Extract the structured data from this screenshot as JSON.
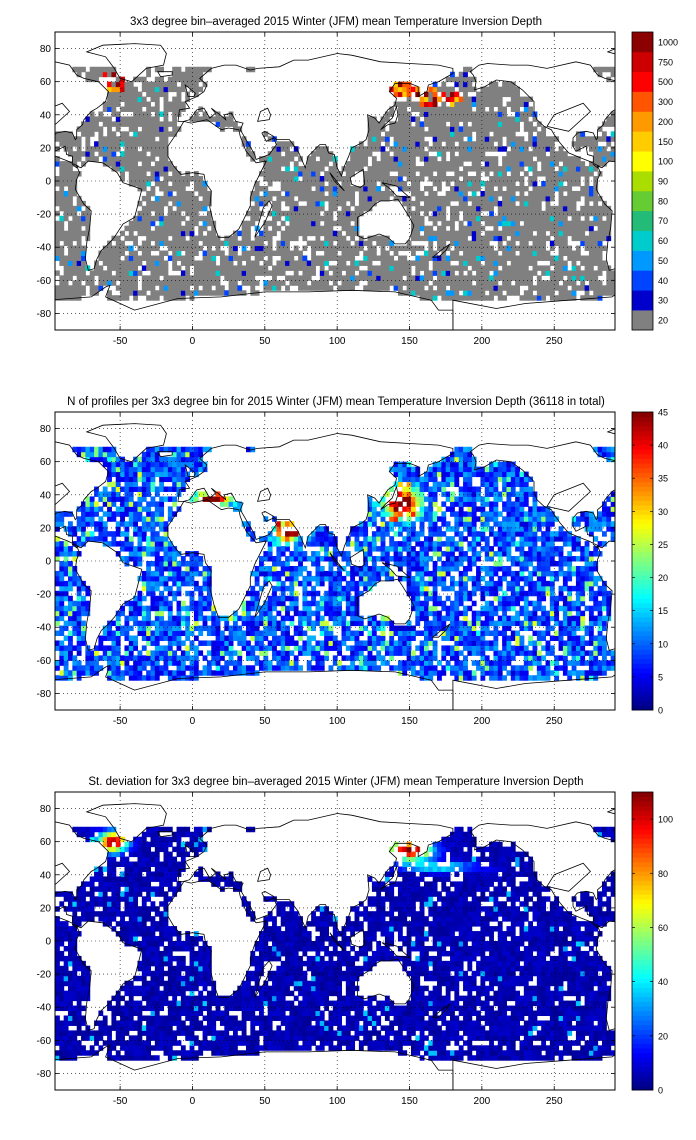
{
  "chart_data": [
    {
      "type": "heatmap",
      "title": "3x3 degree bin–averaged 2015 Winter (JFM) mean Temperature Inversion Depth",
      "xlim": [
        -95,
        292
      ],
      "ylim": [
        -90,
        90
      ],
      "x_ticks": [
        -50,
        0,
        50,
        100,
        150,
        200,
        250
      ],
      "y_ticks": [
        -80,
        -60,
        -40,
        -20,
        0,
        20,
        40,
        60,
        80
      ],
      "grid": true,
      "colorbar": {
        "scale": "discrete",
        "labels": [
          "20",
          "30",
          "40",
          "50",
          "60",
          "70",
          "80",
          "90",
          "100",
          "150",
          "200",
          "300",
          "500",
          "750",
          "1000"
        ],
        "colors": [
          "#808080",
          "#0000cc",
          "#0044ff",
          "#0099ff",
          "#00cccc",
          "#22bb77",
          "#66cc33",
          "#aadd00",
          "#ffff00",
          "#ffcc00",
          "#ff9900",
          "#ff5500",
          "#ff0000",
          "#cc0000",
          "#8b0000"
        ]
      },
      "values_summary": "mostly grey (<=20) over the oceans; 100-1000 over the Labrador/Norwegian Seas and the NW Pacific (Sea of Okhotsk)"
    },
    {
      "type": "heatmap",
      "title": "N of profiles per 3x3 degree bin for 2015 Winter (JFM) mean Temperature Inversion Depth  (36118 in total)",
      "xlim": [
        -95,
        292
      ],
      "ylim": [
        -90,
        90
      ],
      "x_ticks": [
        -50,
        0,
        50,
        100,
        150,
        200,
        250
      ],
      "y_ticks": [
        -80,
        -60,
        -40,
        -20,
        0,
        20,
        40,
        60,
        80
      ],
      "grid": true,
      "colorbar": {
        "scale": "continuous",
        "range": [
          0,
          45
        ],
        "ticks": [
          0,
          5,
          10,
          15,
          20,
          25,
          30,
          35,
          40,
          45
        ],
        "colormap": "jet"
      },
      "values_summary": "mostly 0-15 in open oceans; ~40+ in the Mediterranean, Arabian Sea and NW Pacific off Japan"
    },
    {
      "type": "heatmap",
      "title": "St. deviation for 3x3 degree bin–averaged 2015 Winter (JFM) mean Temperature Inversion Depth",
      "xlim": [
        -95,
        292
      ],
      "ylim": [
        -90,
        90
      ],
      "x_ticks": [
        -50,
        0,
        50,
        100,
        150,
        200,
        250
      ],
      "y_ticks": [
        -80,
        -60,
        -40,
        -20,
        0,
        20,
        40,
        60,
        80
      ],
      "grid": true,
      "colorbar": {
        "scale": "continuous",
        "range": [
          0,
          110
        ],
        "ticks": [
          0,
          20,
          40,
          60,
          80,
          100
        ],
        "colormap": "jet"
      },
      "values_summary": "mostly 0-10 everywhere; ~100+ in the Labrador Sea and the Sea of Okhotsk"
    }
  ]
}
